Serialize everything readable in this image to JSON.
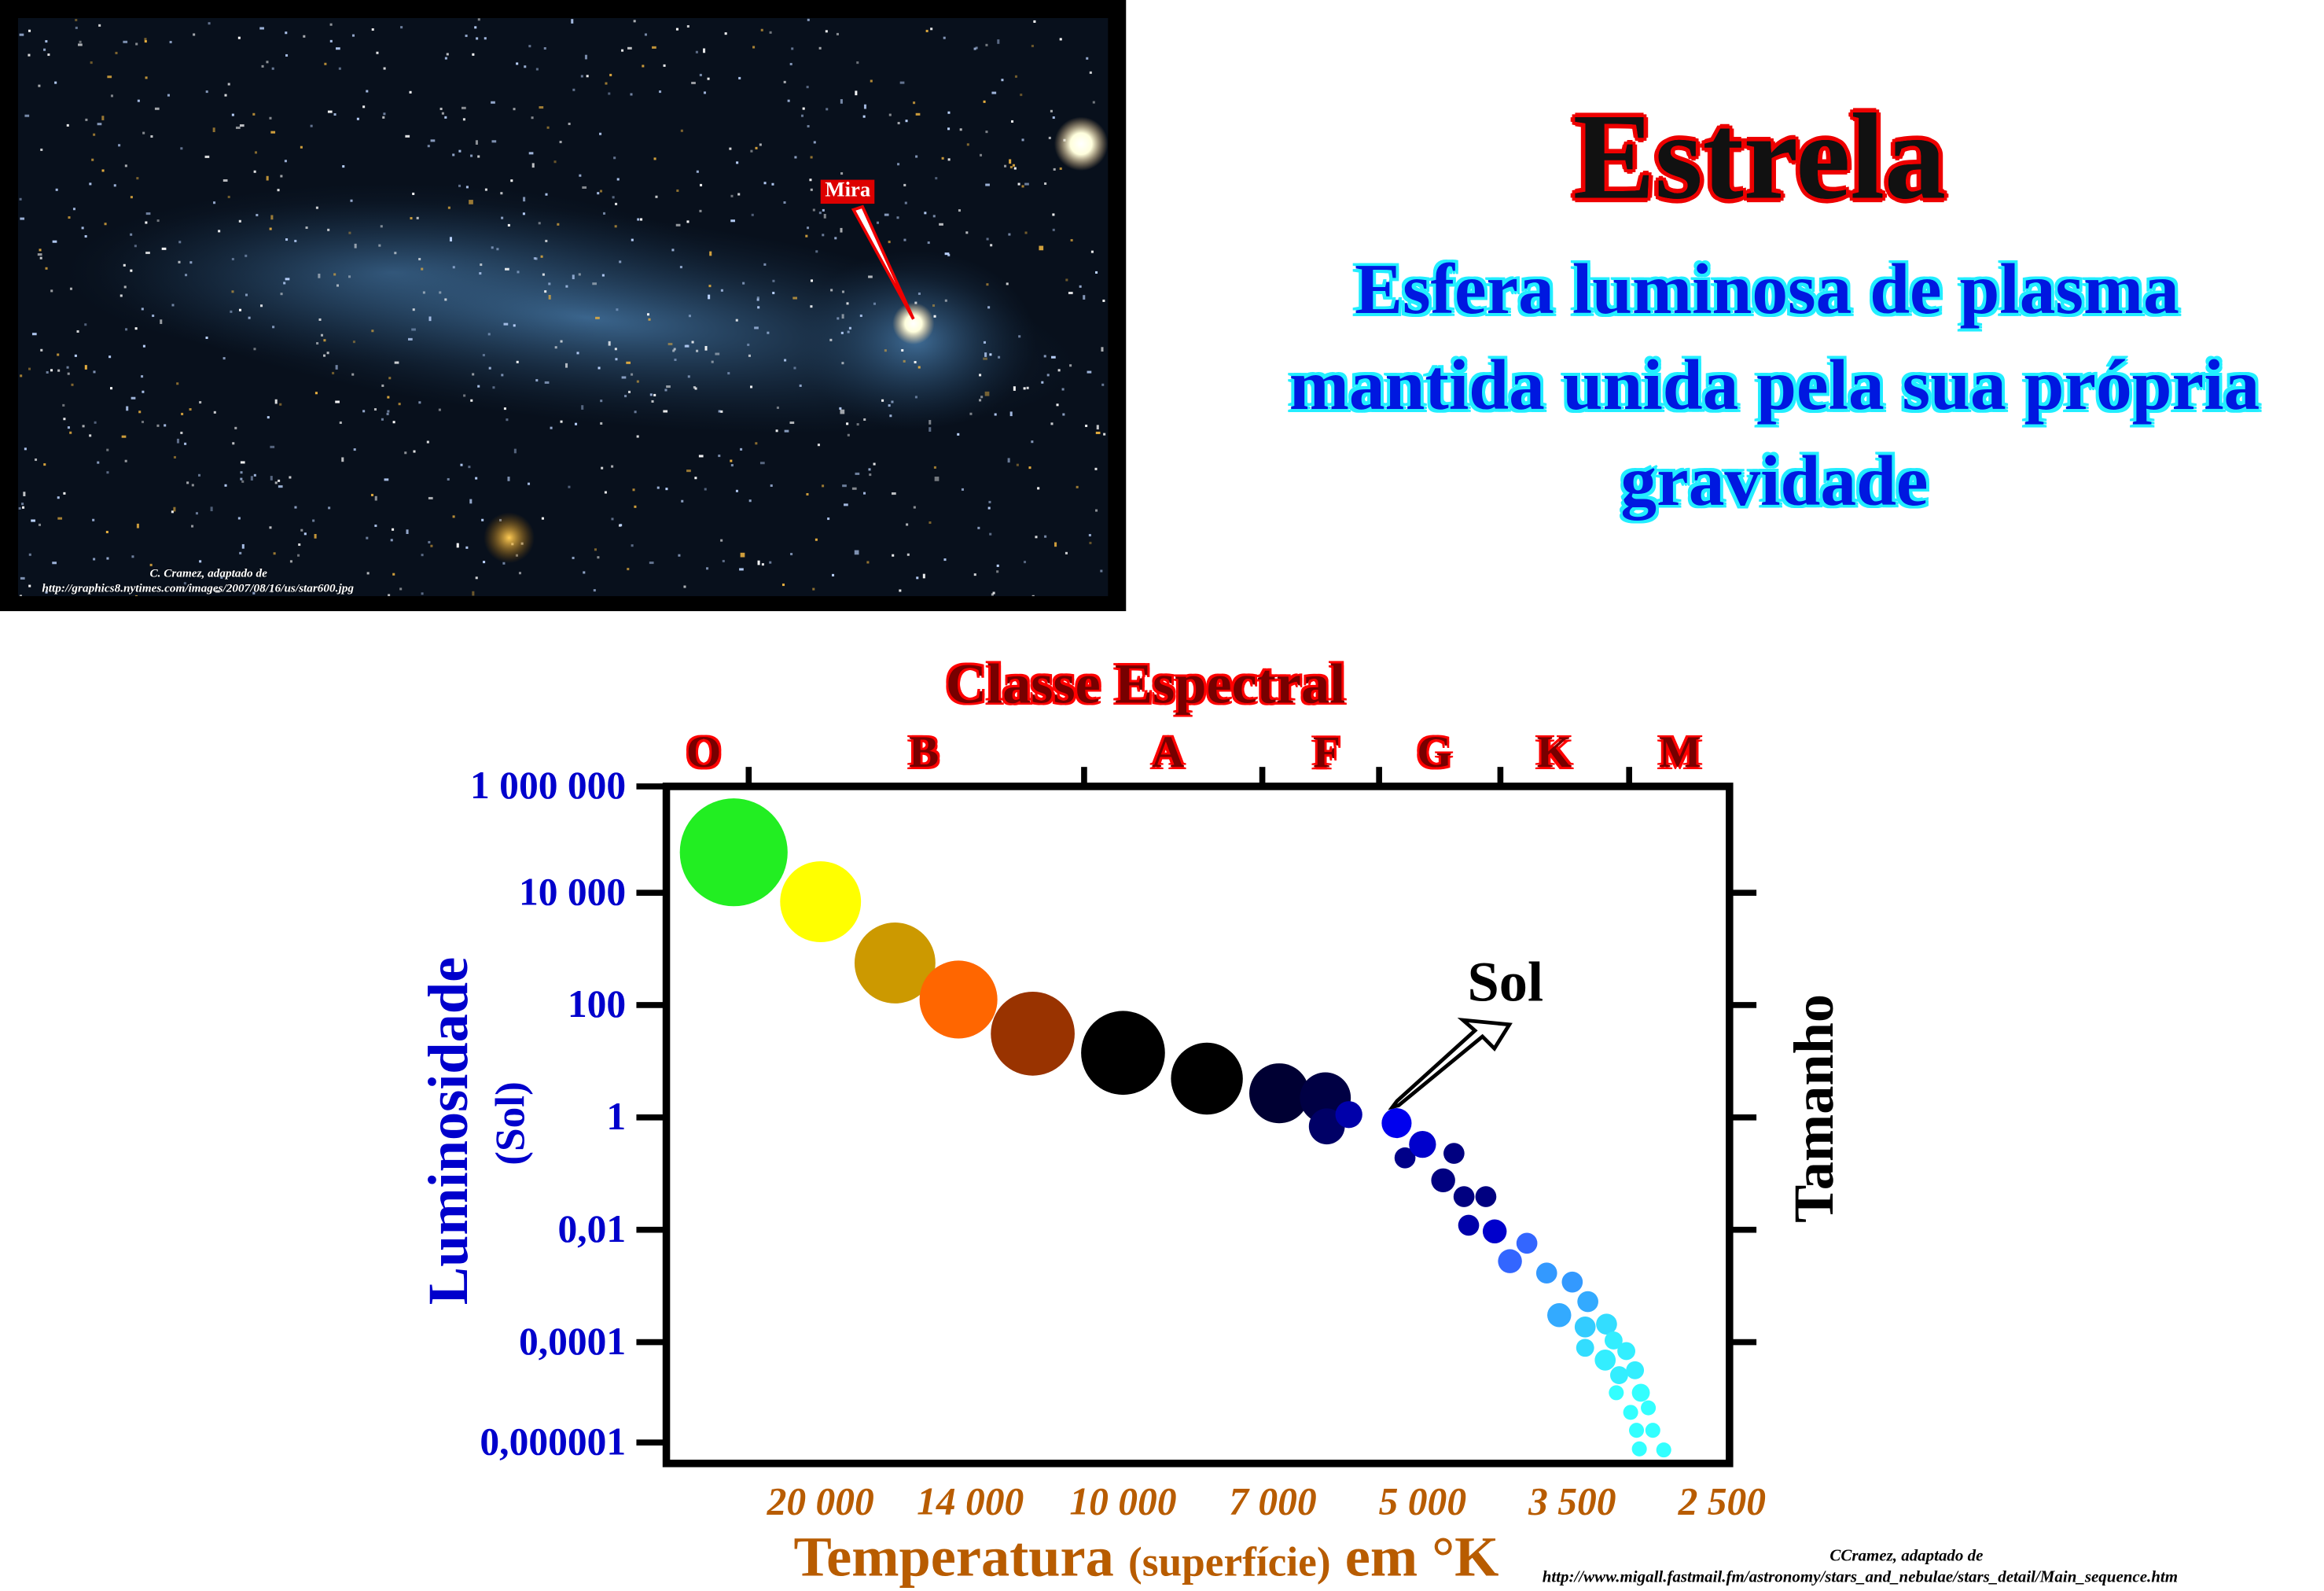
{
  "photo": {
    "label": "Mira",
    "credit_line1": "C. Cramez, adaptado de",
    "credit_line2": "http://graphics8.nytimes.com/images/2007/08/16/us/star600.jpg"
  },
  "header": {
    "title": "Estrela",
    "subtitle_lines": [
      "Esfera luminosa de plasma",
      "mantida unida pela sua própria",
      "gravidade"
    ]
  },
  "chart_data": {
    "type": "scatter",
    "title": "Classe Espectral",
    "spectral_classes": [
      "O",
      "B",
      "A",
      "F",
      "G",
      "K",
      "M"
    ],
    "ylabel": "Luminosidade",
    "ylabel_unit": "(Sol)",
    "y_scale": "log",
    "ylim": [
      1e-06,
      1000000
    ],
    "y_ticks": [
      "1 000 000",
      "10 000",
      "100",
      "1",
      "0,01",
      "0,0001",
      "0,000001"
    ],
    "xlabel": "Temperatura",
    "xlabel_qualifier": "(superfície)",
    "xlabel_unit": "em °K",
    "x_ticks": [
      "20 000",
      "14 000",
      "10 000",
      "7 000",
      "5 000",
      "3 500",
      "2 500"
    ],
    "x_tick_values": [
      20000,
      14000,
      10000,
      7000,
      5000,
      3500,
      2500
    ],
    "right_label": "Tamanho",
    "annotation": "Sol",
    "stars": [
      {
        "T": 24600,
        "logL": 4.72,
        "size": 36,
        "color": "#22ee22"
      },
      {
        "T": 20000,
        "logL": 3.84,
        "size": 27,
        "color": "#ffff00"
      },
      {
        "T": 16750,
        "logL": 2.75,
        "size": 27,
        "color": "#cc9900"
      },
      {
        "T": 14400,
        "logL": 2.1,
        "size": 26,
        "color": "#ff6600"
      },
      {
        "T": 12200,
        "logL": 1.49,
        "size": 28,
        "color": "#993300"
      },
      {
        "T": 10000,
        "logL": 1.15,
        "size": 28,
        "color": "#000000"
      },
      {
        "T": 8190,
        "logL": 0.69,
        "size": 24,
        "color": "#000000"
      },
      {
        "T": 6900,
        "logL": 0.43,
        "size": 20,
        "color": "#000033"
      },
      {
        "T": 6220,
        "logL": 0.35,
        "size": 17,
        "color": "#000044"
      },
      {
        "T": 6200,
        "logL": -0.16,
        "size": 12,
        "color": "#000066"
      },
      {
        "T": 5900,
        "logL": 0.05,
        "size": 9,
        "color": "#0000aa"
      },
      {
        "T": 5300,
        "logL": -0.1,
        "size": 10,
        "color": "#0000ee"
      },
      {
        "T": 5200,
        "logL": -0.72,
        "size": 7,
        "color": "#000088"
      },
      {
        "T": 5000,
        "logL": -0.48,
        "size": 9,
        "color": "#0000cc"
      },
      {
        "T": 4640,
        "logL": -0.64,
        "size": 7,
        "color": "#000080"
      },
      {
        "T": 4760,
        "logL": -1.12,
        "size": 8,
        "color": "#000080"
      },
      {
        "T": 4530,
        "logL": -1.41,
        "size": 7,
        "color": "#000080"
      },
      {
        "T": 4300,
        "logL": -1.41,
        "size": 7,
        "color": "#000080"
      },
      {
        "T": 4480,
        "logL": -1.92,
        "size": 7,
        "color": "#0000aa"
      },
      {
        "T": 4210,
        "logL": -2.03,
        "size": 8,
        "color": "#0000cc"
      },
      {
        "T": 3900,
        "logL": -2.24,
        "size": 7,
        "color": "#3366ff"
      },
      {
        "T": 4060,
        "logL": -2.56,
        "size": 8,
        "color": "#3366ff"
      },
      {
        "T": 3720,
        "logL": -2.77,
        "size": 7,
        "color": "#3399ff"
      },
      {
        "T": 3500,
        "logL": -2.93,
        "size": 7,
        "color": "#3399ff"
      },
      {
        "T": 3380,
        "logL": -3.28,
        "size": 7,
        "color": "#33aaff"
      },
      {
        "T": 3610,
        "logL": -3.52,
        "size": 8,
        "color": "#33aaff"
      },
      {
        "T": 3400,
        "logL": -3.73,
        "size": 7,
        "color": "#33ccff"
      },
      {
        "T": 3240,
        "logL": -3.68,
        "size": 7,
        "color": "#33ddff"
      },
      {
        "T": 3400,
        "logL": -4.1,
        "size": 6,
        "color": "#33ddff"
      },
      {
        "T": 3190,
        "logL": -3.97,
        "size": 6,
        "color": "#33eeff"
      },
      {
        "T": 3250,
        "logL": -4.32,
        "size": 7,
        "color": "#33eeff"
      },
      {
        "T": 3100,
        "logL": -4.16,
        "size": 6,
        "color": "#33eeff"
      },
      {
        "T": 3150,
        "logL": -4.59,
        "size": 6,
        "color": "#33eeff"
      },
      {
        "T": 3040,
        "logL": -4.5,
        "size": 6,
        "color": "#33eeff"
      },
      {
        "T": 3170,
        "logL": -4.9,
        "size": 5,
        "color": "#33ffff"
      },
      {
        "T": 3000,
        "logL": -4.9,
        "size": 6,
        "color": "#33ffff"
      },
      {
        "T": 3070,
        "logL": -5.25,
        "size": 5,
        "color": "#33ffff"
      },
      {
        "T": 2950,
        "logL": -5.17,
        "size": 5,
        "color": "#33ffff"
      },
      {
        "T": 3030,
        "logL": -5.57,
        "size": 5,
        "color": "#33ffff"
      },
      {
        "T": 2920,
        "logL": -5.57,
        "size": 5,
        "color": "#33ffff"
      },
      {
        "T": 3010,
        "logL": -5.9,
        "size": 5,
        "color": "#33ffff"
      },
      {
        "T": 2850,
        "logL": -5.92,
        "size": 5,
        "color": "#33ffff"
      }
    ]
  },
  "credit": {
    "line1": "CCramez, adaptado de",
    "line2": "http://www.migall.fastmail.fm/astronomy/stars_and_nebulae/stars_detail/Main_sequence.htm"
  }
}
